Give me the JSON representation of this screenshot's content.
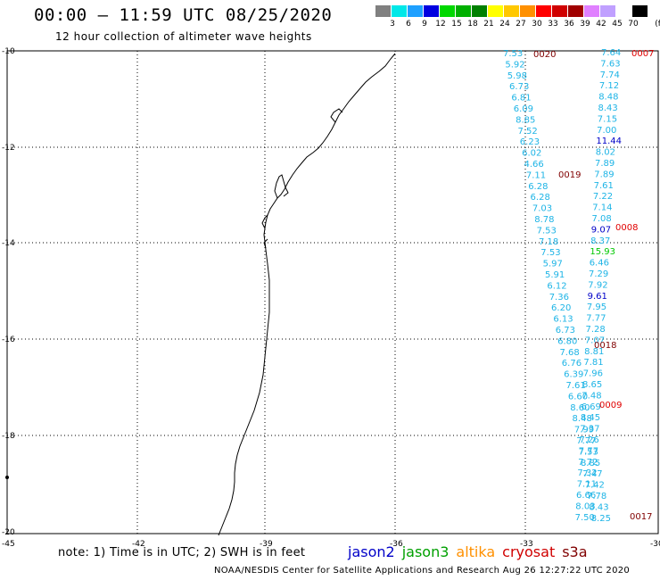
{
  "header": {
    "title": "00:00 – 11:59 UTC 08/25/2020",
    "subtitle": "12 hour collection of altimeter wave heights"
  },
  "color_scale": {
    "unit": "(ft)",
    "bins": [
      {
        "label": "3",
        "color": "#808080"
      },
      {
        "label": "6",
        "color": "#00e8e8"
      },
      {
        "label": "9",
        "color": "#1ea0ff"
      },
      {
        "label": "12",
        "color": "#0000e0"
      },
      {
        "label": "15",
        "color": "#00d800"
      },
      {
        "label": "18",
        "color": "#00b000"
      },
      {
        "label": "21",
        "color": "#008000"
      },
      {
        "label": "24",
        "color": "#ffff00"
      },
      {
        "label": "27",
        "color": "#ffc800"
      },
      {
        "label": "30",
        "color": "#ff9000"
      },
      {
        "label": "33",
        "color": "#ff0000"
      },
      {
        "label": "36",
        "color": "#d00000"
      },
      {
        "label": "39",
        "color": "#a00000"
      },
      {
        "label": "42",
        "color": "#e080ff"
      },
      {
        "label": "45",
        "color": "#c0a0ff"
      },
      {
        "label": "70",
        "color": "#ffffff"
      },
      {
        "label": "",
        "color": "#000000"
      }
    ]
  },
  "axes": {
    "lon_labels": [
      "-45",
      "-42",
      "-39",
      "-36",
      "-33",
      "-30"
    ],
    "lat_labels": [
      "-10",
      "-12",
      "-14",
      "-16",
      "-18",
      "-20"
    ]
  },
  "tracks": {
    "colors": {
      "light": "#1eb4e6",
      "dark": "#0000c8",
      "green": "#00c800",
      "id": "#800000",
      "id_red": "#e00000"
    },
    "track1": {
      "values": [
        "7.53",
        "5.92",
        "5.98",
        "6.73",
        "6.81",
        "6.09",
        "8.85",
        "7.52",
        "6.23",
        "6.02",
        "4.66",
        "7.11",
        "6.28",
        "6.28",
        "7.03",
        "8.78",
        "7.53",
        "7.18",
        "7.53",
        "5.97",
        "5.91",
        "6.12",
        "7.36",
        "6.20",
        "6.13",
        "6.73",
        "6.80",
        "7.68",
        "6.76",
        "6.39",
        "7.61",
        "6.60",
        "8.60",
        "8.48",
        "7.99",
        "7.77",
        "7.53",
        "8.85",
        "7.47",
        "7.42",
        "7.78",
        "8.43",
        "8.25"
      ],
      "ids": [
        "0020",
        "0019",
        "0018",
        "0009"
      ]
    },
    "track2": {
      "values": [
        "7.64",
        "7.63",
        "7.74",
        "7.12",
        "8.48",
        "8.43",
        "7.15",
        "7.00",
        "11.44",
        "8.02",
        "7.89",
        "7.89",
        "7.61",
        "7.22",
        "7.14",
        "7.08",
        "9.07",
        "8.37",
        "15.93",
        "6.46",
        "7.29",
        "7.92",
        "9.61",
        "7.95",
        "7.77",
        "7.28",
        "7.07",
        "8.81",
        "7.81",
        "7.96",
        "8.65",
        "7.48",
        "6.69",
        "8.45",
        "7.37",
        "7.26",
        "7.77",
        "7.72",
        "7.32",
        "7.11",
        "6.66",
        "8.03",
        "7.50"
      ],
      "ids": [
        "0007",
        "0008",
        "0017"
      ]
    }
  },
  "footer": {
    "note": "note: 1) Time is in UTC; 2) SWH is in feet",
    "legend": [
      {
        "label": "jason2",
        "color": "#0000c8"
      },
      {
        "label": "jason3",
        "color": "#00a000"
      },
      {
        "label": "altika",
        "color": "#ff9000"
      },
      {
        "label": "cryosat",
        "color": "#d00000"
      },
      {
        "label": "s3a",
        "color": "#800000"
      }
    ],
    "credit": "NOAA/NESDIS Center for Satellite Applications and Research    Aug 26 12:27:22 UTC 2020"
  }
}
